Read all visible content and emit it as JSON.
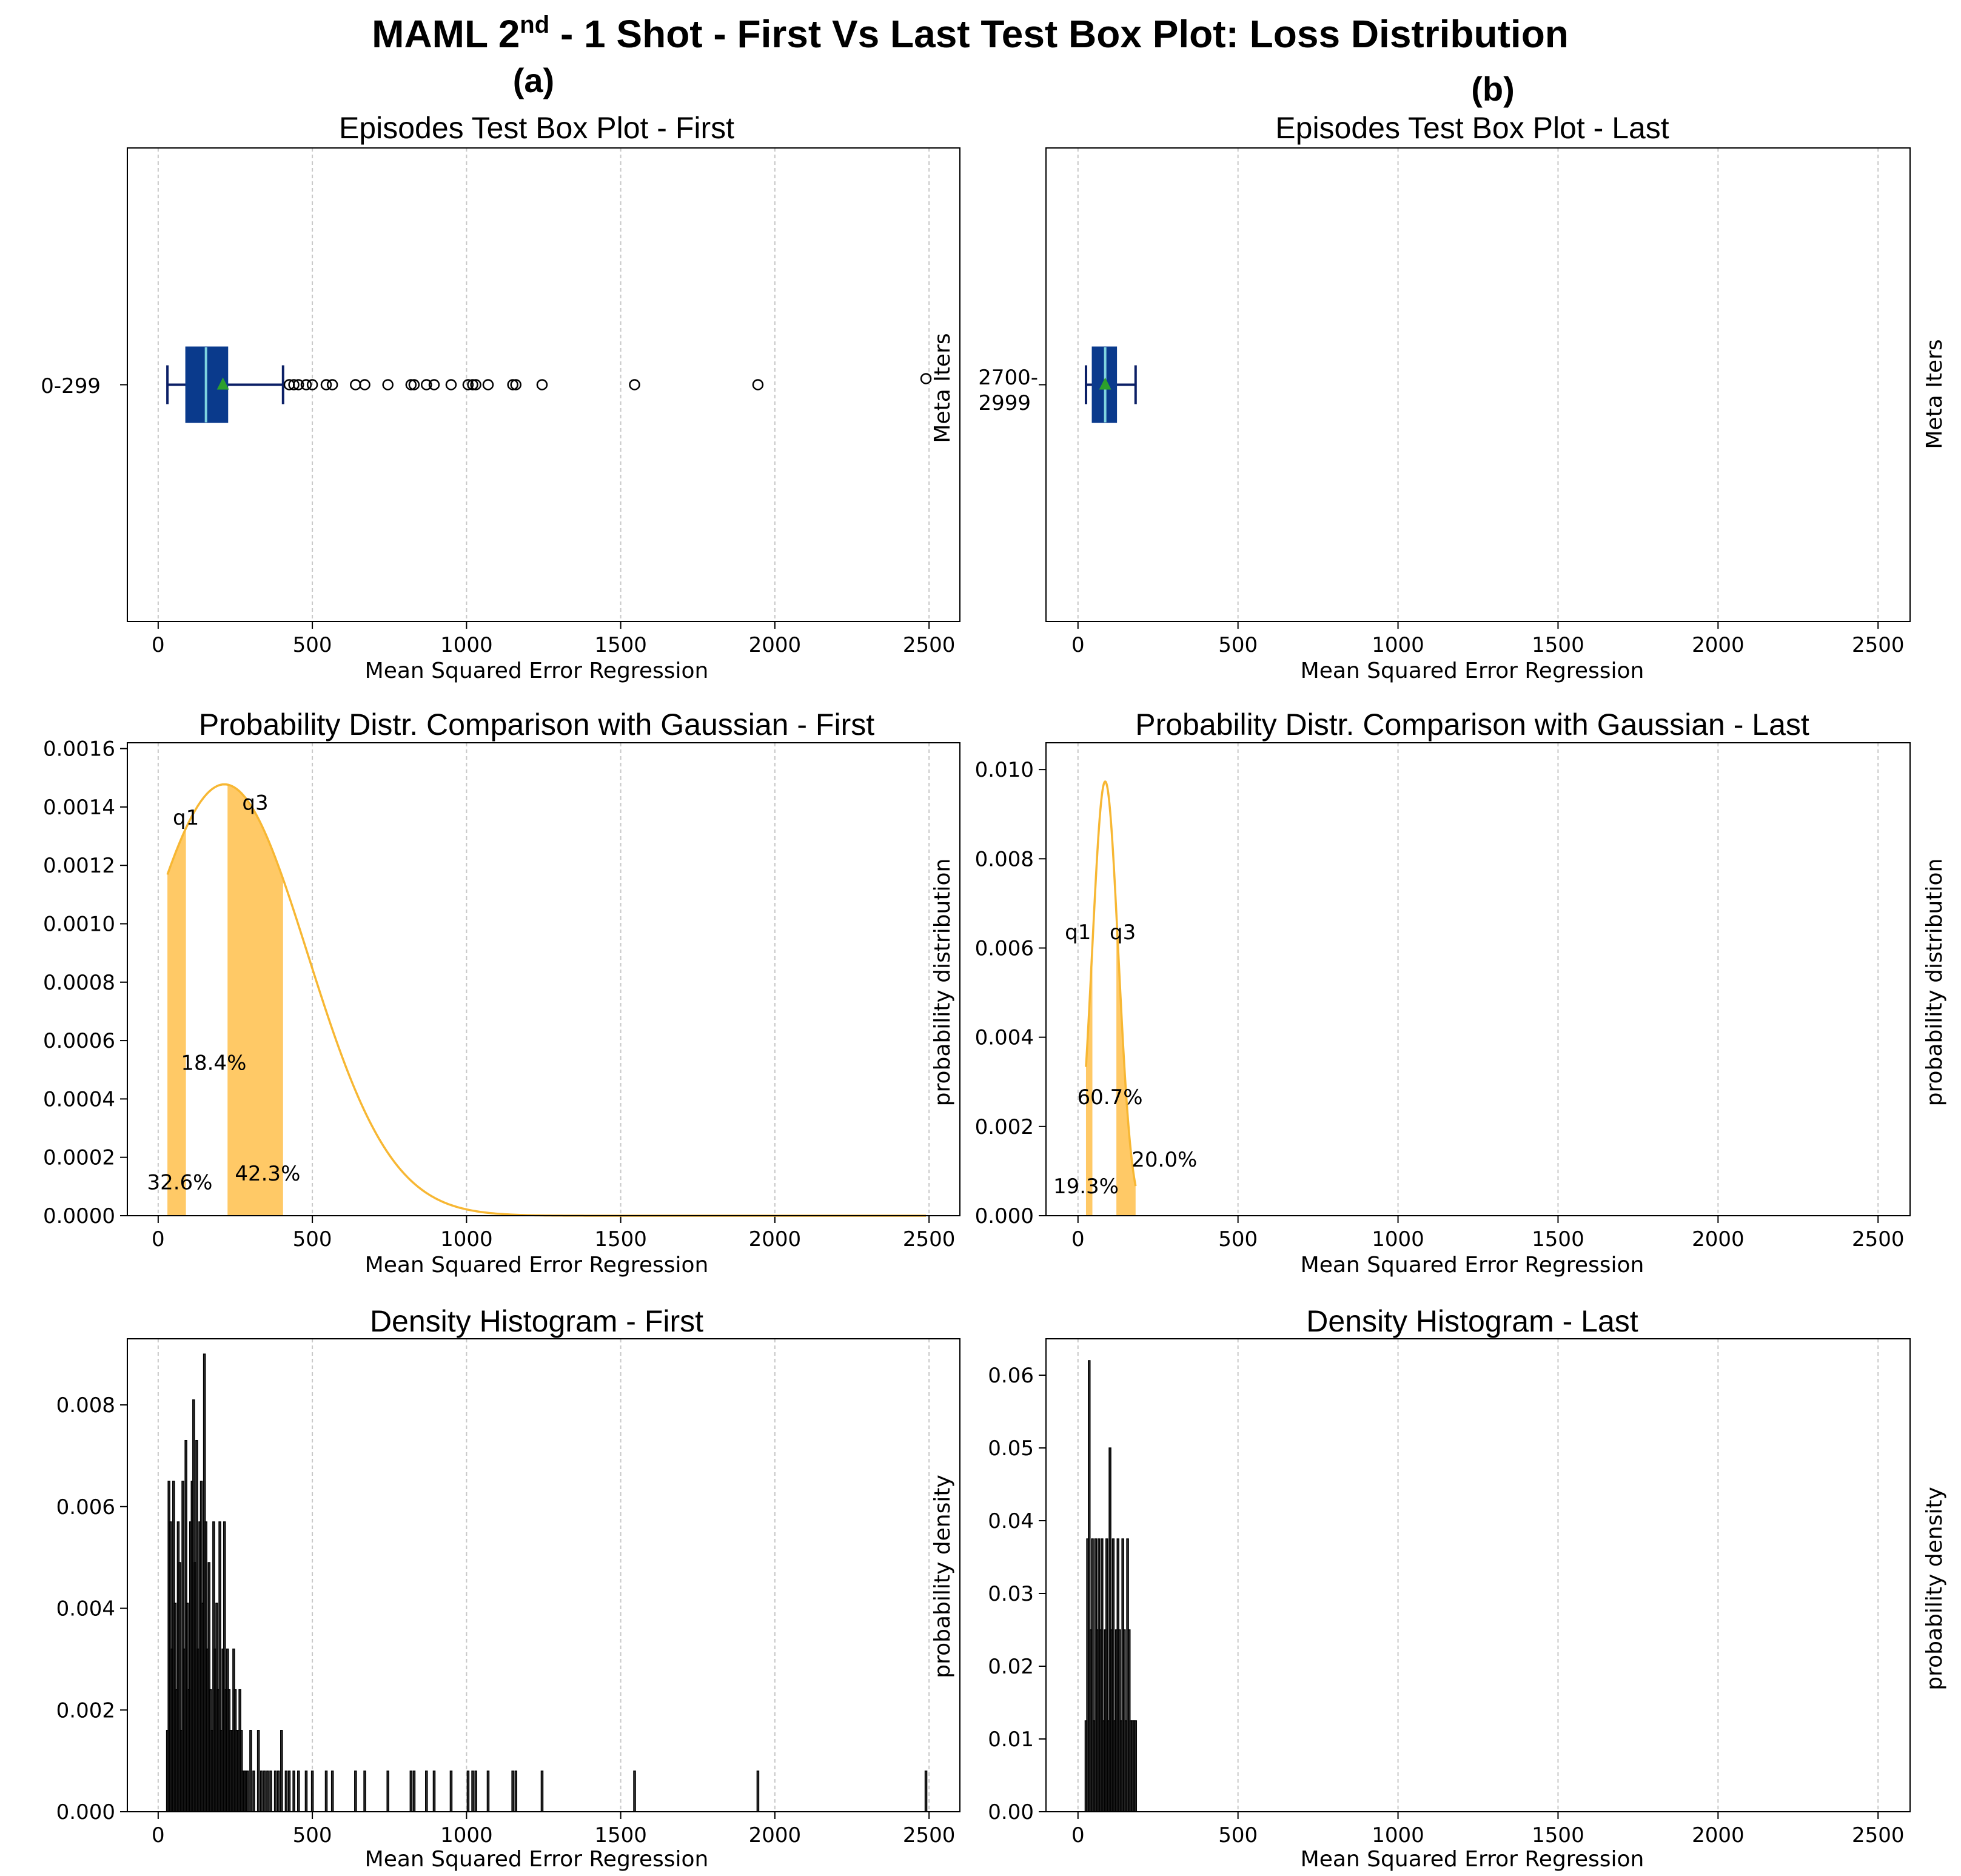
{
  "figure": {
    "title_main": "MAML 2",
    "title_sup": "nd",
    "title_rest": " - 1 Shot - First Vs Last Test Box Plot: Loss Distribution",
    "panel_a": "(a)",
    "panel_b": "(b)"
  },
  "chart_data": [
    {
      "id": "box_first",
      "type": "box",
      "title": "Episodes Test Box Plot - First",
      "xlabel": "Mean Squared Error Regression",
      "ylabel": "",
      "category": "0-299",
      "xlim": [
        -100,
        2600
      ],
      "xticks": [
        "0",
        "500",
        "1000",
        "1500",
        "2000",
        "2500"
      ],
      "whisker_low": 30,
      "q1": 90,
      "median": 155,
      "q3": 225,
      "whisker_high": 405,
      "mean": 210,
      "outliers": [
        425,
        440,
        455,
        480,
        500,
        545,
        565,
        640,
        670,
        745,
        820,
        830,
        870,
        895,
        950,
        1005,
        1020,
        1030,
        1070,
        1150,
        1160,
        1245,
        1545,
        1945,
        2490
      ],
      "grid": "x"
    },
    {
      "id": "box_last",
      "type": "box",
      "title": "Episodes Test Box Plot - Last",
      "xlabel": "Mean Squared Error Regression",
      "ylabel": "Meta Iters",
      "category": "2700-\n2999",
      "category_line1": "2700-",
      "category_line2": "2999",
      "xlim": [
        -100,
        2600
      ],
      "xticks": [
        "0",
        "500",
        "1000",
        "1500",
        "2000",
        "2500"
      ],
      "whisker_low": 25,
      "q1": 45,
      "median": 85,
      "q3": 120,
      "whisker_high": 180,
      "mean": 85,
      "outliers": [],
      "grid": "x"
    },
    {
      "id": "gauss_first",
      "type": "area",
      "title": "Probability Distr. Comparison with Gaussian - First",
      "xlabel": "Mean Squared Error Regression",
      "ylabel": "probability distribution",
      "xlim": [
        -100,
        2600
      ],
      "ylim": [
        0,
        0.00162
      ],
      "xticks": [
        "0",
        "500",
        "1000",
        "1500",
        "2000",
        "2500"
      ],
      "yticks": [
        "0.0000",
        "0.0002",
        "0.0004",
        "0.0006",
        "0.0008",
        "0.0010",
        "0.0012",
        "0.0014",
        "0.0016"
      ],
      "yticks_values": [
        0,
        0.0002,
        0.0004,
        0.0006,
        0.0008,
        0.001,
        0.0012,
        0.0014,
        0.0016
      ],
      "gaussian": {
        "mean": 215,
        "sd": 270,
        "x_start": 30,
        "x_end": 2490
      },
      "shaded": [
        {
          "from": 30,
          "to": 90
        },
        {
          "from": 225,
          "to": 405
        }
      ],
      "labels": [
        "q1",
        "q3",
        "18.4%",
        "32.6%",
        "42.3%"
      ],
      "label_positions": [
        [
          90,
          0.00134
        ],
        [
          315,
          0.00139
        ],
        [
          180,
          0.0005
        ],
        [
          70,
          9e-05
        ],
        [
          355,
          0.00012
        ]
      ],
      "grid": "x"
    },
    {
      "id": "gauss_last",
      "type": "area",
      "title": "Probability Distr. Comparison with Gaussian - Last",
      "xlabel": "Mean Squared Error Regression",
      "ylabel": "probability distribution",
      "xlim": [
        -100,
        2600
      ],
      "ylim": [
        0,
        0.0106
      ],
      "xticks": [
        "0",
        "500",
        "1000",
        "1500",
        "2000",
        "2500"
      ],
      "yticks": [
        "0.000",
        "0.002",
        "0.004",
        "0.006",
        "0.008",
        "0.010"
      ],
      "yticks_values": [
        0,
        0.002,
        0.004,
        0.006,
        0.008,
        0.01
      ],
      "gaussian": {
        "mean": 85,
        "sd": 41,
        "x_start": 25,
        "x_end": 180
      },
      "shaded": [
        {
          "from": 25,
          "to": 45
        },
        {
          "from": 120,
          "to": 180
        }
      ],
      "labels": [
        "q1",
        "q3",
        "60.7%",
        "20.0%",
        "19.3%"
      ],
      "label_positions": [
        [
          0,
          0.0062
        ],
        [
          140,
          0.0062
        ],
        [
          100,
          0.0025
        ],
        [
          270,
          0.0011
        ],
        [
          25,
          0.0005
        ]
      ],
      "grid": "x"
    },
    {
      "id": "hist_first",
      "type": "bar",
      "title": "Density Histogram - First",
      "xlabel": "Mean Squared Error Regression",
      "ylabel": "probability density",
      "xlim": [
        -100,
        2600
      ],
      "ylim": [
        0,
        0.0093
      ],
      "xticks": [
        "0",
        "500",
        "1000",
        "1500",
        "2000",
        "2500"
      ],
      "yticks": [
        "0.000",
        "0.002",
        "0.004",
        "0.006",
        "0.008"
      ],
      "yticks_values": [
        0,
        0.002,
        0.004,
        0.006,
        0.008
      ],
      "x": [
        30,
        35,
        40,
        45,
        50,
        55,
        60,
        65,
        70,
        75,
        80,
        85,
        90,
        95,
        100,
        105,
        110,
        115,
        120,
        125,
        130,
        135,
        140,
        145,
        150,
        155,
        160,
        165,
        170,
        175,
        180,
        185,
        190,
        195,
        200,
        205,
        210,
        215,
        220,
        225,
        230,
        235,
        240,
        245,
        250,
        255,
        260,
        265,
        270,
        275,
        280,
        285,
        290,
        300,
        310,
        325,
        335,
        345,
        355,
        365,
        380,
        390,
        400,
        415,
        425,
        440,
        455,
        480,
        500,
        545,
        565,
        640,
        670,
        745,
        820,
        830,
        870,
        895,
        950,
        1005,
        1020,
        1030,
        1070,
        1150,
        1160,
        1245,
        1545,
        1945,
        2490
      ],
      "values": [
        0.0016,
        0.0065,
        0.0057,
        0.0032,
        0.0065,
        0.0041,
        0.0024,
        0.0057,
        0.0049,
        0.0016,
        0.0065,
        0.0032,
        0.0073,
        0.0041,
        0.0024,
        0.0057,
        0.0065,
        0.0081,
        0.0049,
        0.0073,
        0.0032,
        0.0057,
        0.0065,
        0.0041,
        0.009,
        0.0057,
        0.0032,
        0.0049,
        0.0024,
        0.0016,
        0.0057,
        0.0032,
        0.0041,
        0.0024,
        0.0057,
        0.0016,
        0.0032,
        0.0057,
        0.0024,
        0.0032,
        0.0024,
        0.0016,
        0.0016,
        0.0032,
        0.0024,
        0.0016,
        0.0016,
        0.0024,
        0.0016,
        0.0008,
        0.0008,
        0.0008,
        0.0008,
        0.0016,
        0.0008,
        0.0016,
        0.0008,
        0.0008,
        0.0008,
        0.0008,
        0.0008,
        0.0008,
        0.0016,
        0.0008,
        0.0008,
        0.0008,
        0.0008,
        0.0008,
        0.0008,
        0.0008,
        0.0008,
        0.0008,
        0.0008,
        0.0008,
        0.0008,
        0.0008,
        0.0008,
        0.0008,
        0.0008,
        0.0008,
        0.0008,
        0.0008,
        0.0008,
        0.0008,
        0.0008,
        0.0008,
        0.0008,
        0.0008,
        0.0008
      ],
      "grid": "x"
    },
    {
      "id": "hist_last",
      "type": "bar",
      "title": "Density Histogram - Last",
      "xlabel": "Mean Squared Error Regression",
      "ylabel": "probability density",
      "xlim": [
        -100,
        2600
      ],
      "ylim": [
        0,
        0.065
      ],
      "xticks": [
        "0",
        "500",
        "1000",
        "1500",
        "2000",
        "2500"
      ],
      "yticks": [
        "0.00",
        "0.01",
        "0.02",
        "0.03",
        "0.04",
        "0.05",
        "0.06"
      ],
      "yticks_values": [
        0,
        0.01,
        0.02,
        0.03,
        0.04,
        0.05,
        0.06
      ],
      "x": [
        25,
        30,
        35,
        40,
        45,
        50,
        55,
        60,
        65,
        70,
        75,
        80,
        85,
        90,
        95,
        100,
        105,
        110,
        115,
        120,
        125,
        130,
        135,
        140,
        145,
        150,
        155,
        160,
        165,
        170,
        175,
        180
      ],
      "values": [
        0.0125,
        0.0375,
        0.062,
        0.025,
        0.0375,
        0.0125,
        0.0375,
        0.025,
        0.0375,
        0.025,
        0.0375,
        0.0125,
        0.025,
        0.0375,
        0.0125,
        0.05,
        0.025,
        0.0375,
        0.0125,
        0.025,
        0.0375,
        0.025,
        0.0125,
        0.0375,
        0.025,
        0.0125,
        0.0375,
        0.025,
        0.0125,
        0.0125,
        0.0125,
        0.0125
      ],
      "grid": "x"
    }
  ]
}
